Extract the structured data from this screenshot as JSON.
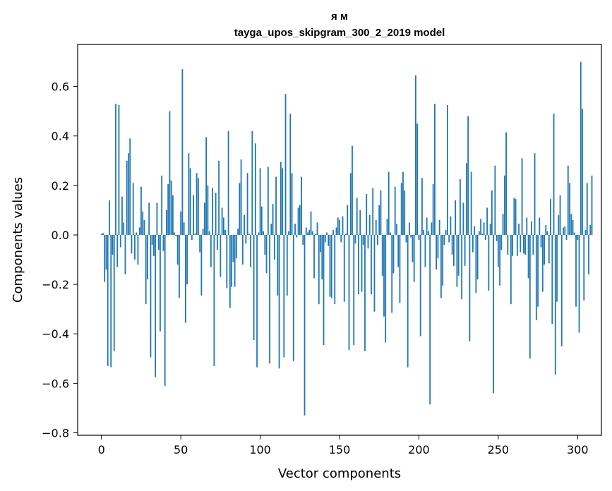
{
  "chart_data": {
    "type": "bar",
    "title": "я м",
    "subtitle": "tayga_upos_skipgram_300_2_2019 model",
    "xlabel": "Vector components",
    "ylabel": "Components values",
    "xlim": [
      -15,
      315
    ],
    "ylim": [
      -0.81,
      0.77
    ],
    "xticks": [
      0,
      50,
      100,
      150,
      200,
      250,
      300
    ],
    "yticks": [
      -0.8,
      -0.6,
      -0.4,
      -0.2,
      0.0,
      0.2,
      0.4,
      0.6
    ],
    "ytick_labels": [
      "−0.8",
      "−0.6",
      "−0.4",
      "−0.2",
      "0.0",
      "0.2",
      "0.4",
      "0.6"
    ],
    "grid": false,
    "bar_color": "#1f77b4",
    "values": [
      0.004,
      0.008,
      -0.19,
      -0.14,
      -0.53,
      0.14,
      -0.535,
      -0.08,
      -0.47,
      0.53,
      -0.13,
      0.525,
      -0.05,
      0.155,
      0.05,
      -0.16,
      0.3,
      0.33,
      0.39,
      -0.075,
      0.21,
      -0.1,
      0.01,
      -0.12,
      0.03,
      0.195,
      0.095,
      0.06,
      -0.28,
      -0.18,
      0.13,
      -0.495,
      -0.04,
      -0.085,
      -0.575,
      0.13,
      -0.06,
      -0.39,
      0.24,
      -0.065,
      -0.61,
      0.1,
      0.205,
      0.5,
      0.22,
      0.16,
      0.01,
      -0.005,
      -0.12,
      -0.255,
      0.095,
      0.67,
      0.05,
      -0.355,
      -0.2,
      0.33,
      0.27,
      -0.02,
      0.16,
      0.005,
      0.25,
      0.23,
      -0.07,
      -0.245,
      0.025,
      0.13,
      0.395,
      0.2,
      0.015,
      -0.13,
      0.19,
      -0.53,
      0.17,
      -0.06,
      0.3,
      -0.17,
      0.11,
      0.07,
      0.02,
      -0.215,
      0.42,
      -0.295,
      -0.21,
      -0.11,
      -0.21,
      -0.095,
      0.025,
      0.21,
      0.305,
      -0.12,
      0.08,
      -0.035,
      0.25,
      0.005,
      -0.13,
      0.42,
      -0.425,
      0.37,
      -0.535,
      0.01,
      0.27,
      0.115,
      0.015,
      -0.08,
      -0.155,
      0.275,
      -0.52,
      0.045,
      0.125,
      -0.1,
      0.235,
      -0.245,
      -0.54,
      0.295,
      0.27,
      -0.495,
      0.57,
      -0.245,
      0.015,
      0.49,
      0.25,
      -0.51,
      0.045,
      -0.01,
      0.11,
      0.12,
      0.235,
      -0.04,
      -0.73,
      0.03,
      0.01,
      0.02,
      0.095,
      0.015,
      -0.175,
      0.005,
      0.05,
      -0.28,
      -0.07,
      -0.18,
      -0.445,
      -0.03,
      0.01,
      -0.045,
      -0.25,
      -0.255,
      0.02,
      -0.28,
      0.03,
      0.07,
      0.06,
      -0.03,
      0.075,
      -0.27,
      0.005,
      0.12,
      -0.465,
      0.25,
      0.36,
      -0.445,
      -0.035,
      0.15,
      -0.24,
      0.1,
      -0.23,
      -0.04,
      -0.47,
      0.165,
      -0.055,
      0.08,
      -0.24,
      0.19,
      -0.31,
      0.06,
      -0.04,
      0.12,
      0.18,
      -0.165,
      -0.33,
      -0.435,
      0.065,
      0.255,
      0.01,
      -0.315,
      -0.155,
      0.195,
      0.045,
      -0.13,
      -0.275,
      0.21,
      0.255,
      0.18,
      -0.03,
      -0.535,
      0.05,
      -0.01,
      -0.11,
      -0.19,
      0.645,
      0.45,
      -0.02,
      -0.41,
      0.23,
      0.02,
      -0.13,
      0.07,
      0.015,
      -0.685,
      0.05,
      0.205,
      0.53,
      -0.14,
      -0.095,
      0.06,
      -0.255,
      -0.205,
      -0.04,
      0.02,
      0.525,
      -0.03,
      0.075,
      -0.08,
      -0.125,
      0.14,
      -0.21,
      -0.165,
      0.225,
      -0.26,
      0.13,
      -0.125,
      0.29,
      0.48,
      -0.43,
      0.255,
      -0.07,
      0.035,
      -0.235,
      -0.18,
      0.015,
      0.065,
      0.005,
      0.05,
      -0.02,
      0.11,
      -0.225,
      0.045,
      0.18,
      -0.64,
      0.28,
      -0.025,
      -0.13,
      -0.205,
      -0.06,
      0.085,
      0.24,
      0.415,
      -0.08,
      0.0,
      -0.28,
      -0.085,
      0.15,
      0.145,
      -0.085,
      0.045,
      -0.07,
      0.31,
      -0.075,
      -0.08,
      0.07,
      -0.175,
      -0.5,
      0.055,
      -0.08,
      0.33,
      -0.345,
      -0.29,
      0.07,
      -0.05,
      -0.23,
      -0.12,
      0.04,
      0.015,
      -0.115,
      0.145,
      -0.36,
      0.49,
      -0.565,
      -0.27,
      0.08,
      0.16,
      -0.45,
      0.03,
      0.035,
      -0.02,
      0.28,
      0.21,
      0.085,
      0.06,
      0.01,
      -0.29,
      -0.02,
      -0.395,
      0.7,
      0.51,
      -0.265,
      0.02,
      0.21,
      -0.16,
      0.04,
      0.24
    ]
  }
}
